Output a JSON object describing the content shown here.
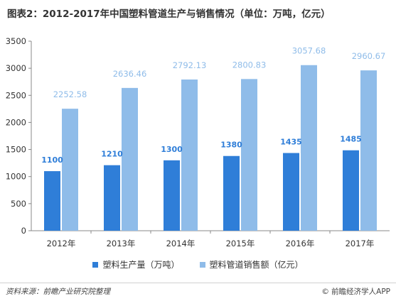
{
  "title": "图表2：2012-2017年中国塑料管道生产与销售情况（单位：万吨，亿元）",
  "colors": {
    "production": "#2f7ed8",
    "sales": "#8fbce9",
    "production_label": "#2f7ed8",
    "sales_label": "#8fbce9"
  },
  "chart_data": {
    "type": "bar",
    "title": "图表2：2012-2017年中国塑料管道生产与销售情况（单位：万吨，亿元）",
    "categories": [
      "2012年",
      "2013年",
      "2014年",
      "2015年",
      "2016年",
      "2017年"
    ],
    "series": [
      {
        "name": "塑料生产量（万吨）",
        "values": [
          1100,
          1210,
          1300,
          1380,
          1435,
          1485
        ],
        "labels": [
          "1100",
          "1210",
          "1300",
          "1380",
          "1435",
          "1485"
        ]
      },
      {
        "name": "塑料管道销售额（亿元）",
        "values": [
          2252.58,
          2636.46,
          2792.13,
          2800.83,
          3057.68,
          2960.67
        ],
        "labels": [
          "2252.58",
          "2636.46",
          "2792.13",
          "2800.83",
          "3057.68",
          "2960.67"
        ]
      }
    ],
    "ylim": [
      0,
      3500
    ],
    "yticks": [
      0,
      500,
      1000,
      1500,
      2000,
      2500,
      3000,
      3500
    ],
    "grid": false,
    "legend_position": "bottom"
  },
  "legend": {
    "production": "塑料生产量（万吨）",
    "sales": "塑料管道销售额（亿元）"
  },
  "footer": {
    "source": "资料来源：前瞻产业研究院整理",
    "credit": "前瞻经济学人APP",
    "copyright_symbol": "©"
  }
}
